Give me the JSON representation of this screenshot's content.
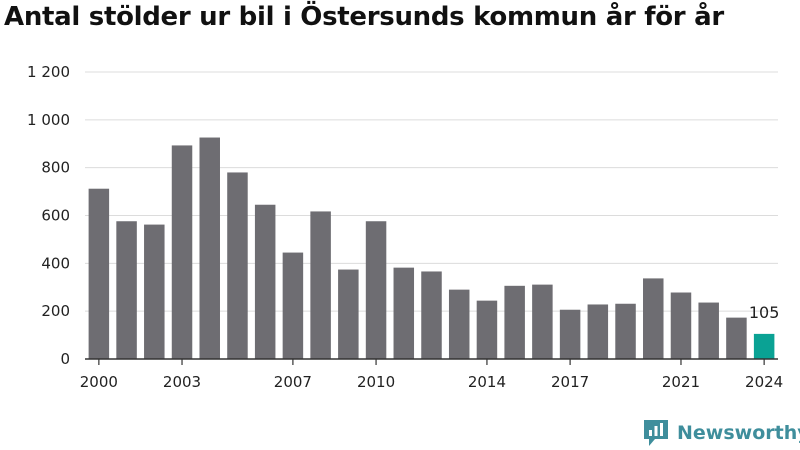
{
  "chart_data": {
    "type": "bar",
    "title": "Antal stölder ur bil i Östersunds kommun år för år",
    "x": [
      2000,
      2001,
      2002,
      2003,
      2004,
      2005,
      2006,
      2007,
      2008,
      2009,
      2010,
      2011,
      2012,
      2013,
      2014,
      2015,
      2016,
      2017,
      2018,
      2019,
      2020,
      2021,
      2022,
      2023,
      2024
    ],
    "values": [
      712,
      576,
      562,
      893,
      926,
      780,
      645,
      445,
      617,
      374,
      576,
      382,
      366,
      290,
      244,
      306,
      311,
      206,
      228,
      231,
      337,
      278,
      236,
      173,
      105
    ],
    "x_tick_labels": [
      "2000",
      "2003",
      "2007",
      "2010",
      "2014",
      "2017",
      "2021",
      "2024"
    ],
    "x_tick_years": [
      2000,
      2003,
      2007,
      2010,
      2014,
      2017,
      2021,
      2024
    ],
    "y_ticks": [
      0,
      200,
      400,
      600,
      800,
      1000,
      1200
    ],
    "y_tick_labels": [
      "0",
      "200",
      "400",
      "600",
      "800",
      "1 000",
      "1 200"
    ],
    "ylim": [
      0,
      1200
    ],
    "grid": true,
    "highlight_year": 2024,
    "highlight_label": "105",
    "colors": {
      "bar": "#6e6d72",
      "highlight": "#0aa294",
      "grid": "#dcdcdc",
      "axis": "#333333"
    }
  },
  "branding": {
    "name": "Newsworthy",
    "color": "#3f8e9c"
  }
}
